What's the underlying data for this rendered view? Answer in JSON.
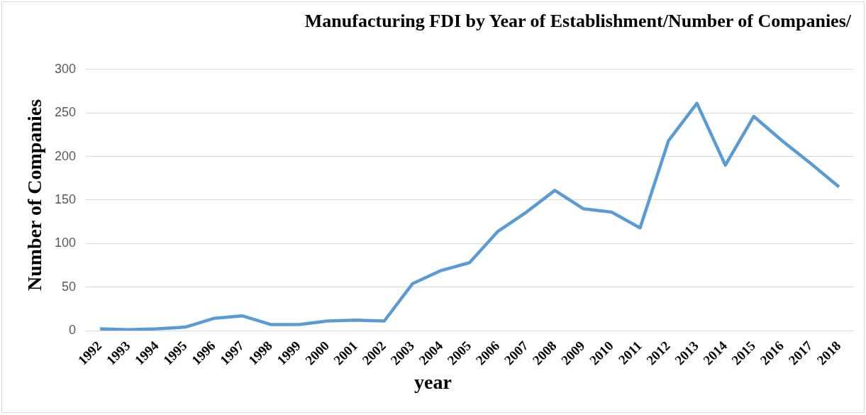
{
  "chart_data": {
    "type": "line",
    "title": "Manufacturing FDI by Year of Establishment/Number of Companies/",
    "xlabel": "year",
    "ylabel": "Number of Companies",
    "categories": [
      "1992",
      "1993",
      "1994",
      "1995",
      "1996",
      "1997",
      "1998",
      "1999",
      "2000",
      "2001",
      "2002",
      "2003",
      "2004",
      "2005",
      "2006",
      "2007",
      "2008",
      "2009",
      "2010",
      "2011",
      "2012",
      "2013",
      "2014",
      "2015",
      "2016",
      "2017",
      "2018"
    ],
    "series": [
      {
        "color": "#5b9bd5",
        "values": [
          2,
          1,
          2,
          4,
          14,
          17,
          7,
          7,
          11,
          12,
          11,
          54,
          69,
          78,
          114,
          136,
          161,
          140,
          136,
          118,
          218,
          261,
          190,
          246,
          218,
          192,
          165
        ]
      }
    ],
    "ylim": [
      0,
      300
    ],
    "yticks": [
      0,
      50,
      100,
      150,
      200,
      250,
      300
    ],
    "grid": "y",
    "legend": false,
    "marker": "none",
    "line_style": "solid"
  }
}
